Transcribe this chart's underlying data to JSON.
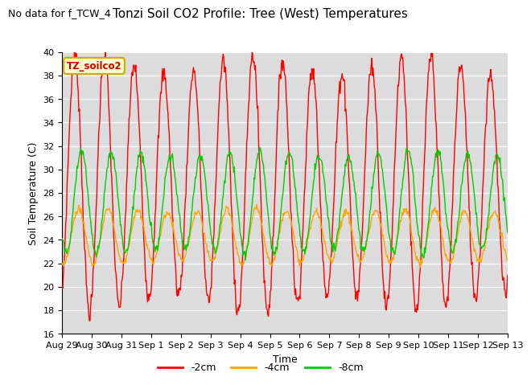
{
  "title": "Tonzi Soil CO2 Profile: Tree (West) Temperatures",
  "subtitle": "No data for f_TCW_4",
  "xlabel": "Time",
  "ylabel": "Soil Temperature (C)",
  "ylim": [
    16,
    40
  ],
  "yticks": [
    16,
    18,
    20,
    22,
    24,
    26,
    28,
    30,
    32,
    34,
    36,
    38,
    40
  ],
  "colors": {
    "2cm": "#ff0000",
    "4cm": "#ffa500",
    "8cm": "#00cc00"
  },
  "legend_labels": [
    "-2cm",
    "-4cm",
    "-8cm"
  ],
  "box_label": "TZ_soilco2",
  "axes_background": "#dcdcdc",
  "fig_background": "#ffffff",
  "tick_labels": [
    "Aug 29",
    "Aug 30",
    "Aug 31",
    "Sep 1",
    "Sep 2",
    "Sep 3",
    "Sep 4",
    "Sep 5",
    "Sep 6",
    "Sep 7",
    "Sep 8",
    "Sep 9",
    "Sep 10",
    "Sep 11",
    "Sep 12",
    "Sep 13"
  ],
  "title_fontsize": 11,
  "subtitle_fontsize": 9,
  "axis_label_fontsize": 9,
  "tick_fontsize": 8
}
